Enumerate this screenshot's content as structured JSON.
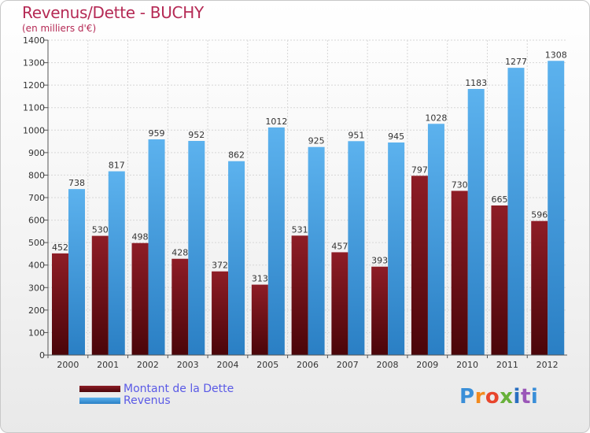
{
  "header": {
    "title": "Revenus/Dette - BUCHY",
    "subtitle": "(en milliers d'€)"
  },
  "chart_data": {
    "type": "bar",
    "title": "Revenus/Dette - BUCHY",
    "subtitle": "(en milliers d'€)",
    "xlabel": "",
    "ylabel": "",
    "ylim": [
      0,
      1400
    ],
    "ytick_step": 100,
    "grid": true,
    "legend_position": "bottom-left",
    "categories": [
      "2000",
      "2001",
      "2002",
      "2003",
      "2004",
      "2005",
      "2006",
      "2007",
      "2008",
      "2009",
      "2010",
      "2011",
      "2012"
    ],
    "series": [
      {
        "name": "Montant de la Dette",
        "color": "#6b0d14",
        "values": [
          452,
          530,
          498,
          428,
          372,
          313,
          531,
          457,
          393,
          797,
          730,
          665,
          596
        ]
      },
      {
        "name": "Revenus",
        "color": "#3f9be0",
        "values": [
          738,
          817,
          959,
          952,
          862,
          1012,
          925,
          951,
          945,
          1028,
          1183,
          1277,
          1308
        ]
      }
    ]
  },
  "legend": {
    "items": [
      {
        "label": "Montant de la Dette",
        "color": "#6b0d14"
      },
      {
        "label": "Revenus",
        "color": "#3f9be0"
      }
    ]
  },
  "logo": {
    "letters": [
      "P",
      "r",
      "o",
      "x",
      "i",
      "t",
      "i"
    ]
  }
}
